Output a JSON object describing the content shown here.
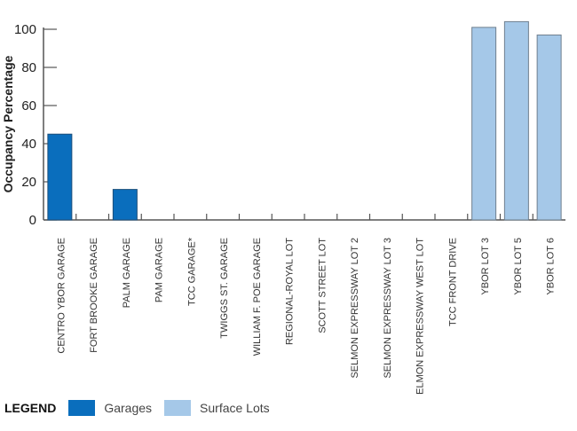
{
  "chart_data": {
    "type": "bar",
    "title": "",
    "xlabel": "",
    "ylabel": "Occupancy Percentage",
    "ylim": [
      0,
      100
    ],
    "yticks": [
      0,
      20,
      40,
      60,
      80,
      100
    ],
    "grid": false,
    "categories": [
      "CENTRO YBOR GARAGE",
      "FORT BROOKE GARAGE",
      "PALM GARAGE",
      "PAM GARAGE",
      "TCC  GARAGE*",
      "TWIGGS ST. GARAGE",
      "WILLIAM F. POE  GARAGE",
      "REGIONAL-ROYAL LOT",
      "SCOTT STREET LOT",
      "SELMON EXPRESSWAY LOT 2",
      "SELMON EXPRESSWAY LOT 3",
      "SELMON EXPRESSWAY WEST LOT",
      "TCC FRONT DRIVE",
      "YBOR LOT 3",
      "YBOR LOT 5",
      "YBOR LOT 6"
    ],
    "values": [
      45,
      0,
      16,
      0,
      0,
      0,
      0,
      0,
      0,
      0,
      0,
      0,
      0,
      101,
      104,
      97
    ],
    "groups": [
      "Garages",
      "Garages",
      "Garages",
      "Garages",
      "Garages",
      "Garages",
      "Garages",
      "Surface Lots",
      "Surface Lots",
      "Surface Lots",
      "Surface Lots",
      "Surface Lots",
      "Surface Lots",
      "Surface Lots",
      "Surface Lots",
      "Surface Lots"
    ],
    "legend": {
      "title": "LEGEND",
      "placement": "bottom-left",
      "entries": [
        {
          "name": "Garages",
          "color": "#0a6ebd"
        },
        {
          "name": "Surface Lots",
          "color": "#a5c8e8"
        }
      ]
    }
  }
}
